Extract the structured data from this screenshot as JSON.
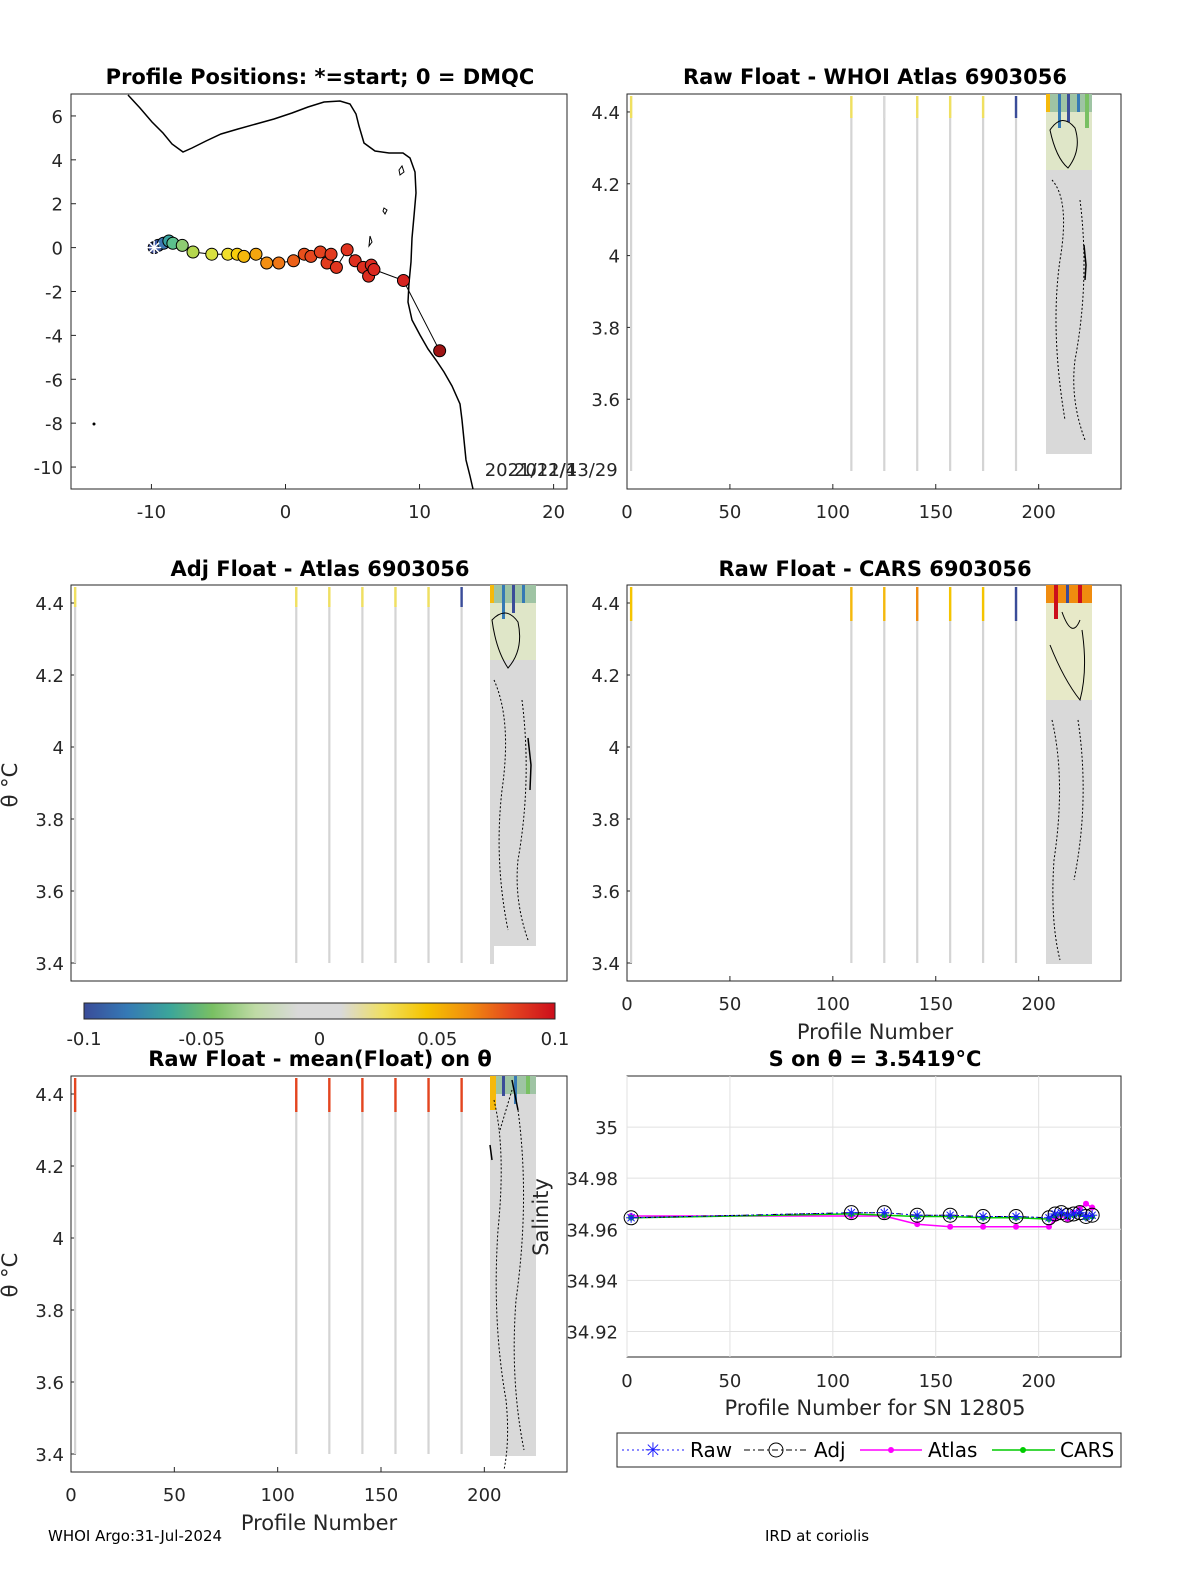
{
  "footer": {
    "left": "WHOI Argo:31-Jul-2024",
    "right": "IRD at coriolis"
  },
  "colorbar": {
    "ticks": [
      "-0.1",
      "-0.05",
      "0",
      "0.05",
      "0.1"
    ],
    "stops": [
      "#3a4c99",
      "#3579b5",
      "#3ba59a",
      "#79c063",
      "#bfdba5",
      "#d9d9d9",
      "#d9d9d9",
      "#f0e060",
      "#f5c400",
      "#f08c0f",
      "#e4451f",
      "#cc0d1c"
    ]
  },
  "chart_data": [
    {
      "id": "positions",
      "type": "scatter",
      "title": "Profile Positions: *=start; 0 = DMQC",
      "xlim": [
        -16,
        21
      ],
      "ylim": [
        -11,
        7
      ],
      "xticks": [
        "-10",
        "0",
        "10",
        "20"
      ],
      "yticks": [
        "6",
        "4",
        "2",
        "0",
        "-2",
        "-4",
        "-6",
        "-8",
        "-10"
      ],
      "annotation": "2021/13/29",
      "annotation_overlay": "2021/12/4",
      "start_marker": [
        -9.8,
        0.0
      ],
      "track_lon": [
        -9.8,
        -9.5,
        -9.1,
        -8.7,
        -8.4,
        -7.7,
        -6.9,
        -5.5,
        -4.3,
        -3.6,
        -3.1,
        -2.2,
        -1.4,
        -0.5,
        0.6,
        1.4,
        1.9,
        2.6,
        3.1,
        3.4,
        3.8,
        4.6,
        5.2,
        5.8,
        6.2,
        6.4,
        6.6,
        8.8,
        11.5
      ],
      "track_lat": [
        0.0,
        0.1,
        0.2,
        0.3,
        0.2,
        0.1,
        -0.2,
        -0.3,
        -0.3,
        -0.3,
        -0.4,
        -0.3,
        -0.7,
        -0.7,
        -0.6,
        -0.3,
        -0.4,
        -0.2,
        -0.7,
        -0.3,
        -0.9,
        -0.1,
        -0.6,
        -0.9,
        -1.3,
        -0.8,
        -1.0,
        -1.5,
        -4.7
      ],
      "point_colors": [
        "#3a4c99",
        "#3f5aa6",
        "#3e78b1",
        "#38a3a0",
        "#5cc18d",
        "#8ecc72",
        "#b4d64e",
        "#d8e040",
        "#f0df2c",
        "#f6cd0b",
        "#f5b90c",
        "#f5a60e",
        "#f38f12",
        "#ef7716",
        "#ec6119",
        "#e9501c",
        "#e6471e",
        "#e3421f",
        "#e23d1f",
        "#e23b1f",
        "#e1361f",
        "#e0331f",
        "#df301f",
        "#de2e1f",
        "#dd2c1f",
        "#dc2a1f",
        "#db281f",
        "#d62320",
        "#9e1414"
      ]
    },
    {
      "id": "raw-atlas",
      "type": "heatmap",
      "title": "Raw Float - WHOI Atlas  6903056",
      "xlim": [
        0,
        240
      ],
      "ylim": [
        3.35,
        4.45
      ],
      "xticks": [
        "0",
        "50",
        "100",
        "150",
        "200"
      ],
      "yticks": [
        "4.4",
        "4.2",
        "4",
        "3.8",
        "3.6"
      ],
      "profiles": [
        2,
        109,
        125,
        141,
        157,
        173,
        189
      ]
    },
    {
      "id": "adj-atlas",
      "type": "heatmap",
      "title": "Adj Float - Atlas  6903056",
      "ylabel": "θ °C",
      "xlim": [
        0,
        240
      ],
      "ylim": [
        3.35,
        4.45
      ],
      "yticks": [
        "4.4",
        "4.2",
        "4",
        "3.8",
        "3.6",
        "3.4"
      ],
      "profiles": [
        2,
        109,
        125,
        141,
        157,
        173,
        189
      ]
    },
    {
      "id": "raw-cars",
      "type": "heatmap",
      "title": "Raw Float - CARS  6903056",
      "xlabel": "Profile Number",
      "xlim": [
        0,
        240
      ],
      "ylim": [
        3.35,
        4.45
      ],
      "xticks": [
        "0",
        "50",
        "100",
        "150",
        "200"
      ],
      "yticks": [
        "4.4",
        "4.2",
        "4",
        "3.8",
        "3.6",
        "3.4"
      ],
      "profiles": [
        2,
        109,
        125,
        141,
        157,
        173,
        189
      ]
    },
    {
      "id": "raw-mean",
      "type": "heatmap",
      "title": "Raw Float - mean(Float) on θ",
      "xlabel": "Profile Number",
      "ylabel": "θ °C",
      "xlim": [
        0,
        240
      ],
      "ylim": [
        3.35,
        4.45
      ],
      "xticks": [
        "0",
        "50",
        "100",
        "150",
        "200"
      ],
      "yticks": [
        "4.4",
        "4.2",
        "4",
        "3.8",
        "3.6",
        "3.4"
      ],
      "profiles": [
        2,
        109,
        125,
        141,
        157,
        173,
        189
      ]
    },
    {
      "id": "salinity",
      "type": "line",
      "title": "S on θ = 3.5419°C",
      "xlabel": "Profile Number for SN 12805",
      "ylabel": "Salinity",
      "xlim": [
        0,
        240
      ],
      "ylim": [
        34.91,
        35.02
      ],
      "xticks": [
        "0",
        "50",
        "100",
        "150",
        "200"
      ],
      "yticks": [
        "35",
        "34.98",
        "34.96",
        "34.94",
        "34.92"
      ],
      "grid": true,
      "legend_position": "bottom-outside",
      "series": [
        {
          "name": "Raw",
          "color": "#1a1aff",
          "x": [
            2,
            109,
            125,
            141,
            157,
            173,
            189,
            205,
            208,
            211,
            214,
            217,
            220,
            223,
            226
          ],
          "y": [
            34.9645,
            34.9665,
            34.9665,
            34.9655,
            34.9655,
            34.965,
            34.965,
            34.9645,
            34.966,
            34.9665,
            34.9655,
            34.966,
            34.9665,
            34.965,
            34.9655
          ]
        },
        {
          "name": "Adj",
          "color": "#000000",
          "x": [
            2,
            109,
            125,
            141,
            157,
            173,
            189,
            205,
            208,
            211,
            214,
            217,
            220,
            223,
            226
          ],
          "y": [
            34.9645,
            34.9665,
            34.9665,
            34.9655,
            34.9655,
            34.965,
            34.965,
            34.9645,
            34.966,
            34.9665,
            34.9655,
            34.966,
            34.9665,
            34.965,
            34.9655
          ]
        },
        {
          "name": "Atlas",
          "color": "#ff00ff",
          "x": [
            2,
            109,
            125,
            141,
            157,
            173,
            189,
            205,
            208,
            211,
            214,
            217,
            220,
            223,
            226
          ],
          "y": [
            34.9652,
            34.9652,
            34.9652,
            34.962,
            34.961,
            34.961,
            34.961,
            34.961,
            34.964,
            34.9655,
            34.964,
            34.9665,
            34.968,
            34.97,
            34.9685
          ]
        },
        {
          "name": "CARS",
          "color": "#00cc00",
          "x": [
            2,
            109,
            125,
            141,
            157,
            173,
            189,
            205,
            208,
            211,
            214,
            217,
            220,
            223,
            226
          ],
          "y": [
            34.9645,
            34.966,
            34.9655,
            34.965,
            34.965,
            34.9645,
            34.9645,
            34.964,
            34.9655,
            34.966,
            34.965,
            34.9655,
            34.966,
            34.9645,
            34.965
          ]
        }
      ]
    }
  ]
}
